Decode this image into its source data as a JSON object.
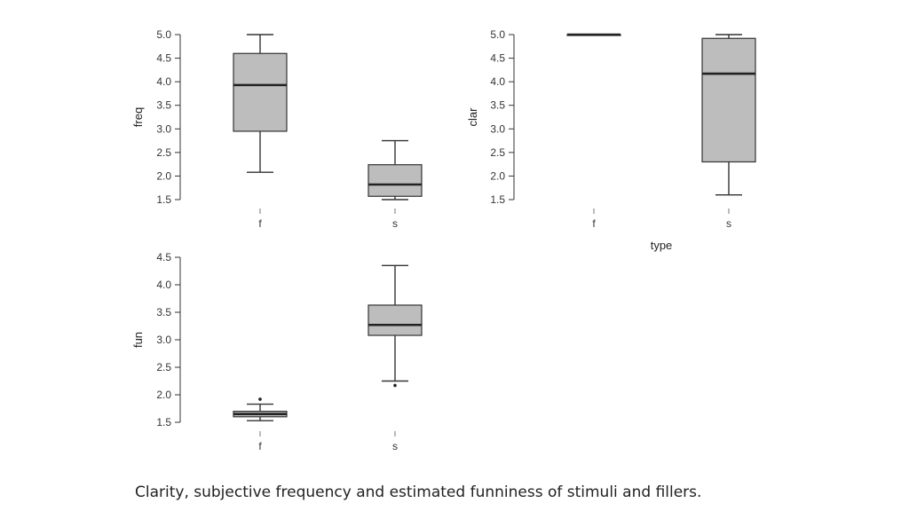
{
  "caption": "Clarity, subjective frequency and estimated funniness of stimuli and fillers.",
  "colors": {
    "box_fill": "#bdbdbd",
    "line": "#333333",
    "text": "#333333"
  },
  "chart_data": [
    {
      "type": "boxplot",
      "id": "freq",
      "ylabel": "freq",
      "xlabel": "",
      "categories": [
        "f",
        "s"
      ],
      "yticks": [
        "1.5",
        "2.0",
        "2.5",
        "3.0",
        "3.5",
        "4.0",
        "4.5",
        "5.0"
      ],
      "ylim": [
        1.5,
        5.0
      ],
      "boxes": [
        {
          "category": "f",
          "whisker_low": 2.08,
          "q1": 2.95,
          "median": 3.93,
          "q3": 4.6,
          "whisker_high": 5.0,
          "outliers": []
        },
        {
          "category": "s",
          "whisker_low": 1.5,
          "q1": 1.57,
          "median": 1.82,
          "q3": 2.24,
          "whisker_high": 2.75,
          "outliers": []
        }
      ]
    },
    {
      "type": "boxplot",
      "id": "clar",
      "ylabel": "clar",
      "xlabel": "type",
      "categories": [
        "f",
        "s"
      ],
      "yticks": [
        "1.5",
        "2.0",
        "2.5",
        "3.0",
        "3.5",
        "4.0",
        "4.5",
        "5.0"
      ],
      "ylim": [
        1.5,
        5.0
      ],
      "boxes": [
        {
          "category": "f",
          "whisker_low": 5.0,
          "q1": 5.0,
          "median": 5.0,
          "q3": 5.0,
          "whisker_high": 5.0,
          "outliers": []
        },
        {
          "category": "s",
          "whisker_low": 1.6,
          "q1": 2.3,
          "median": 4.17,
          "q3": 4.92,
          "whisker_high": 5.0,
          "outliers": []
        }
      ]
    },
    {
      "type": "boxplot",
      "id": "fun",
      "ylabel": "fun",
      "xlabel": "",
      "categories": [
        "f",
        "s"
      ],
      "yticks": [
        "1.5",
        "2.0",
        "2.5",
        "3.0",
        "3.5",
        "4.0",
        "4.5"
      ],
      "ylim": [
        1.5,
        4.5
      ],
      "boxes": [
        {
          "category": "f",
          "whisker_low": 1.53,
          "q1": 1.6,
          "median": 1.65,
          "q3": 1.7,
          "whisker_high": 1.83,
          "outliers": [
            1.92
          ]
        },
        {
          "category": "s",
          "whisker_low": 2.25,
          "q1": 3.08,
          "median": 3.27,
          "q3": 3.63,
          "whisker_high": 4.35,
          "outliers": [
            2.17
          ]
        }
      ]
    }
  ]
}
